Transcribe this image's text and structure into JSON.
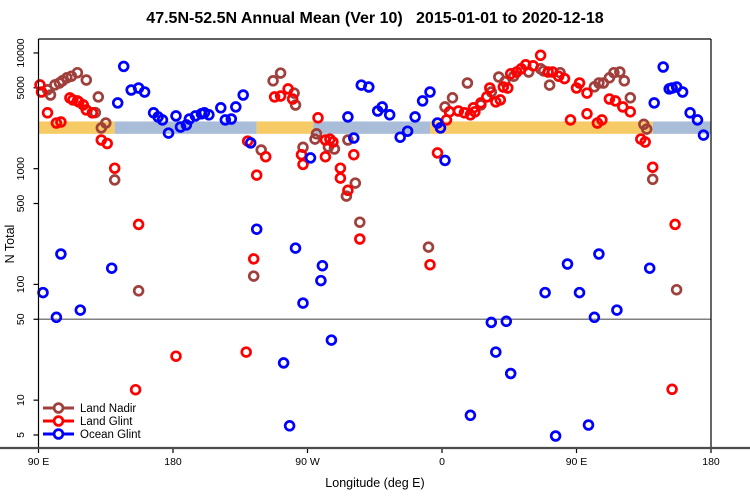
{
  "title": "47.5N-52.5N Annual Mean (Ver 10)   2015-01-01 to 2020-12-18",
  "colors": {
    "land_nadir": "#A0403C",
    "land_glint": "#FF0000",
    "ocean_glint": "#0000FF",
    "band_sand": "#F6CB66",
    "band_blue": "#AABDD8",
    "reference_line": "#808080",
    "axis_line": "#4d4d4d",
    "box_line": "#000000"
  },
  "chart_data": {
    "type": "scatter",
    "title": "47.5N-52.5N Annual Mean (Ver 10)   2015-01-01 to 2020-12-18",
    "xlabel": "Longitude (deg E)",
    "ylabel": "N Total",
    "x_axis": {
      "domain": [
        90,
        540
      ],
      "ticks": [
        {
          "value": 90,
          "label": "90 E"
        },
        {
          "value": 180,
          "label": "180"
        },
        {
          "value": 270,
          "label": "90 W"
        },
        {
          "value": 360,
          "label": "0"
        },
        {
          "value": 450,
          "label": "90 E"
        },
        {
          "value": 540,
          "label": "180"
        }
      ]
    },
    "y_axis": {
      "scale": "log",
      "domain": [
        3.86,
        13200
      ],
      "ticks": [
        10000,
        5000,
        1000,
        500,
        100,
        50,
        10,
        5
      ]
    },
    "reference_line": {
      "y": 50
    },
    "bands": {
      "y_from": 2000,
      "y_to": 2560,
      "segments": [
        {
          "color": "sand",
          "from": 90,
          "to": 141
        },
        {
          "color": "blue",
          "from": 141,
          "to": 236
        },
        {
          "color": "sand",
          "from": 236,
          "to": 274
        },
        {
          "color": "blue",
          "from": 274,
          "to": 352
        },
        {
          "color": "sand",
          "from": 352,
          "to": 501
        },
        {
          "color": "blue",
          "from": 501,
          "to": 540
        }
      ]
    },
    "legend": {
      "position": "bottom-left",
      "entries": [
        "Land Nadir",
        "Land Glint",
        "Ocean Glint"
      ]
    },
    "series": [
      {
        "name": "Land Nadir",
        "color_key": "land_nadir",
        "points": [
          [
            96,
            4800
          ],
          [
            98,
            4330
          ],
          [
            101,
            5300
          ],
          [
            104,
            5500
          ],
          [
            106,
            5750
          ],
          [
            109,
            6100
          ],
          [
            112,
            6300
          ],
          [
            116,
            6750
          ],
          [
            122,
            5840
          ],
          [
            130,
            4170
          ],
          [
            128,
            3050
          ],
          [
            132,
            2250
          ],
          [
            135,
            2480
          ],
          [
            141,
            800
          ],
          [
            157,
            88
          ],
          [
            239,
            1450
          ],
          [
            247,
            5750
          ],
          [
            252,
            6700
          ],
          [
            261,
            4500
          ],
          [
            262,
            3550
          ],
          [
            267,
            1530
          ],
          [
            275,
            1800
          ],
          [
            276,
            2000
          ],
          [
            284,
            1540
          ],
          [
            288,
            1480
          ],
          [
            297,
            1770
          ],
          [
            296,
            580
          ],
          [
            302,
            750
          ],
          [
            234,
            118
          ],
          [
            305,
            345
          ],
          [
            351,
            210
          ],
          [
            362,
            3420
          ],
          [
            367,
            4100
          ],
          [
            377,
            5500
          ],
          [
            386,
            3560
          ],
          [
            393,
            4600
          ],
          [
            398,
            6200
          ],
          [
            402,
            5650
          ],
          [
            408,
            6300
          ],
          [
            418,
            6850
          ],
          [
            426,
            7300
          ],
          [
            428,
            7000
          ],
          [
            432,
            5280
          ],
          [
            439,
            6750
          ],
          [
            462,
            5100
          ],
          [
            465,
            5500
          ],
          [
            468,
            5500
          ],
          [
            472,
            6100
          ],
          [
            475,
            6750
          ],
          [
            479,
            6850
          ],
          [
            482,
            5750
          ],
          [
            486,
            4100
          ],
          [
            495,
            2420
          ],
          [
            497,
            2200
          ],
          [
            501,
            810
          ],
          [
            517,
            90
          ]
        ]
      },
      {
        "name": "Land Glint",
        "color_key": "land_glint",
        "points": [
          [
            91,
            5300
          ],
          [
            92,
            4600
          ],
          [
            96,
            3040
          ],
          [
            102,
            2480
          ],
          [
            105,
            2530
          ],
          [
            111,
            4090
          ],
          [
            113,
            3930
          ],
          [
            116,
            3850
          ],
          [
            117,
            3780
          ],
          [
            120,
            3560
          ],
          [
            122,
            3220
          ],
          [
            126,
            3040
          ],
          [
            132,
            1770
          ],
          [
            136,
            1650
          ],
          [
            141,
            1010
          ],
          [
            157,
            330
          ],
          [
            155,
            12.3
          ],
          [
            182,
            24
          ],
          [
            229,
            26
          ],
          [
            230,
            1730
          ],
          [
            236,
            880
          ],
          [
            242,
            1270
          ],
          [
            248,
            4170
          ],
          [
            252,
            4250
          ],
          [
            257,
            4890
          ],
          [
            260,
            4000
          ],
          [
            266,
            1320
          ],
          [
            267,
            1090
          ],
          [
            277,
            2750
          ],
          [
            282,
            1770
          ],
          [
            285,
            1800
          ],
          [
            287,
            1700
          ],
          [
            282,
            1270
          ],
          [
            292,
            1010
          ],
          [
            292,
            830
          ],
          [
            301,
            1320
          ],
          [
            297,
            650
          ],
          [
            234,
            166
          ],
          [
            305,
            247
          ],
          [
            352,
            148
          ],
          [
            357,
            1370
          ],
          [
            363,
            2640
          ],
          [
            365,
            3100
          ],
          [
            371,
            3150
          ],
          [
            375,
            3040
          ],
          [
            379,
            2920
          ],
          [
            381,
            3360
          ],
          [
            382,
            3100
          ],
          [
            386,
            3700
          ],
          [
            390,
            4170
          ],
          [
            392,
            4980
          ],
          [
            396,
            3780
          ],
          [
            399,
            3930
          ],
          [
            401,
            5080
          ],
          [
            404,
            4980
          ],
          [
            406,
            6600
          ],
          [
            410,
            6850
          ],
          [
            413,
            7300
          ],
          [
            416,
            7900
          ],
          [
            421,
            7750
          ],
          [
            426,
            9550
          ],
          [
            431,
            6850
          ],
          [
            434,
            6850
          ],
          [
            438,
            6300
          ],
          [
            442,
            6000
          ],
          [
            446,
            2640
          ],
          [
            450,
            4980
          ],
          [
            452,
            5500
          ],
          [
            457,
            4500
          ],
          [
            457,
            2980
          ],
          [
            464,
            2480
          ],
          [
            467,
            2640
          ],
          [
            472,
            4000
          ],
          [
            476,
            3850
          ],
          [
            481,
            3420
          ],
          [
            486,
            3100
          ],
          [
            493,
            1800
          ],
          [
            496,
            1700
          ],
          [
            501,
            1030
          ],
          [
            516,
            330
          ],
          [
            514,
            12.4
          ]
        ]
      },
      {
        "name": "Ocean Glint",
        "color_key": "ocean_glint",
        "points": [
          [
            147,
            7650
          ],
          [
            143,
            3700
          ],
          [
            152,
            4790
          ],
          [
            157,
            4980
          ],
          [
            161,
            4600
          ],
          [
            167,
            3040
          ],
          [
            170,
            2800
          ],
          [
            173,
            2640
          ],
          [
            177,
            2030
          ],
          [
            182,
            2860
          ],
          [
            185,
            2290
          ],
          [
            189,
            2390
          ],
          [
            191,
            2690
          ],
          [
            195,
            2860
          ],
          [
            199,
            2980
          ],
          [
            201,
            3040
          ],
          [
            204,
            2920
          ],
          [
            212,
            3360
          ],
          [
            215,
            2640
          ],
          [
            219,
            2690
          ],
          [
            222,
            3420
          ],
          [
            227,
            4330
          ],
          [
            232,
            1670
          ],
          [
            272,
            1240
          ],
          [
            297,
            2800
          ],
          [
            301,
            1840
          ],
          [
            306,
            5280
          ],
          [
            311,
            5080
          ],
          [
            317,
            3150
          ],
          [
            320,
            3420
          ],
          [
            325,
            2920
          ],
          [
            332,
            1870
          ],
          [
            337,
            2110
          ],
          [
            342,
            2800
          ],
          [
            347,
            3850
          ],
          [
            352,
            4600
          ],
          [
            357,
            2480
          ],
          [
            359,
            2250
          ],
          [
            362,
            1180
          ],
          [
            502,
            3700
          ],
          [
            508,
            7560
          ],
          [
            512,
            4890
          ],
          [
            514,
            4980
          ],
          [
            517,
            5080
          ],
          [
            521,
            4600
          ],
          [
            526,
            3040
          ],
          [
            531,
            2640
          ],
          [
            535,
            1950
          ],
          [
            93,
            85
          ],
          [
            102,
            52
          ],
          [
            105,
            183
          ],
          [
            118,
            60
          ],
          [
            139,
            138
          ],
          [
            236,
            300
          ],
          [
            262,
            206
          ],
          [
            267,
            69
          ],
          [
            279,
            108
          ],
          [
            280,
            145
          ],
          [
            393,
            47
          ],
          [
            403,
            48
          ],
          [
            429,
            85
          ],
          [
            444,
            150
          ],
          [
            452,
            85
          ],
          [
            462,
            52
          ],
          [
            465,
            183
          ],
          [
            477,
            60
          ],
          [
            499,
            138
          ],
          [
            254,
            21
          ],
          [
            286,
            33
          ],
          [
            258,
            6.0
          ],
          [
            396,
            26
          ],
          [
            406,
            17
          ],
          [
            379,
            7.4
          ],
          [
            436,
            4.9
          ],
          [
            458,
            6.1
          ]
        ]
      }
    ]
  }
}
